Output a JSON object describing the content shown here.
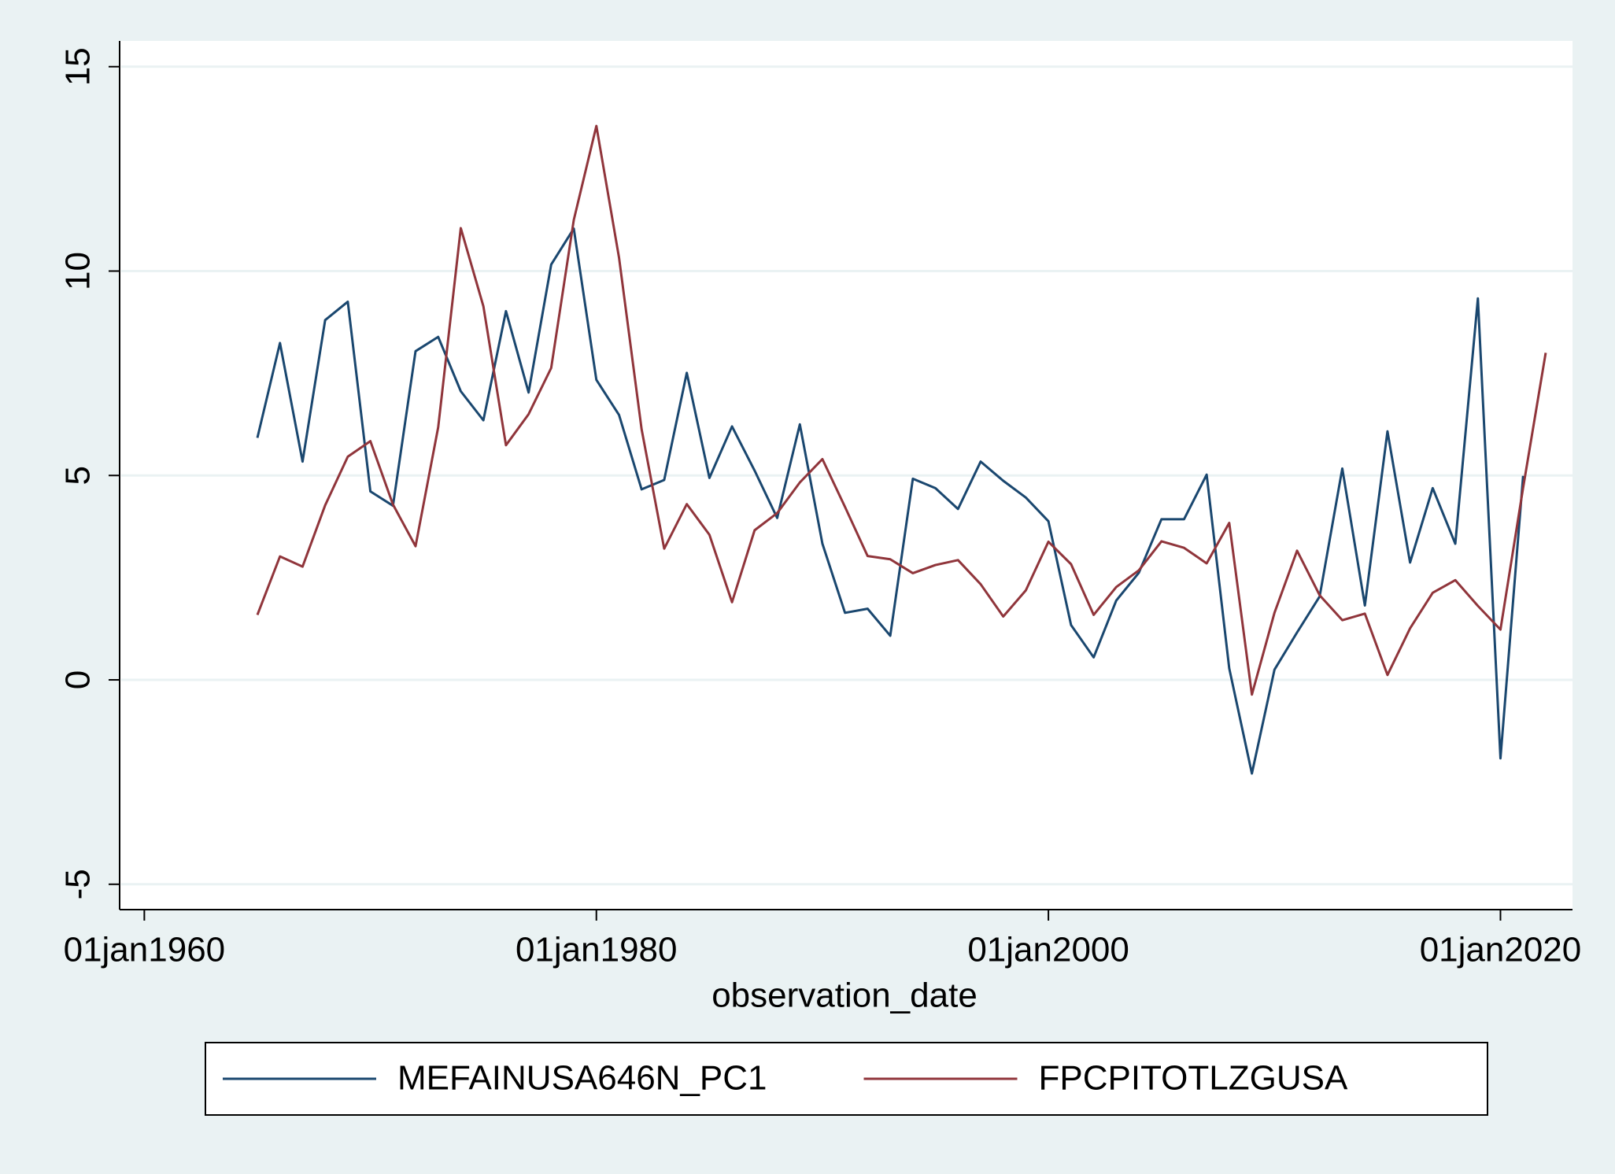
{
  "chart_data": {
    "type": "line",
    "x_label": "observation_date",
    "x": [
      "1965-01-01",
      "1966-01-01",
      "1967-01-01",
      "1968-01-01",
      "1969-01-01",
      "1970-01-01",
      "1971-01-01",
      "1972-01-01",
      "1973-01-01",
      "1974-01-01",
      "1975-01-01",
      "1976-01-01",
      "1977-01-01",
      "1978-01-01",
      "1979-01-01",
      "1980-01-01",
      "1981-01-01",
      "1982-01-01",
      "1983-01-01",
      "1984-01-01",
      "1985-01-01",
      "1986-01-01",
      "1987-01-01",
      "1988-01-01",
      "1989-01-01",
      "1990-01-01",
      "1991-01-01",
      "1992-01-01",
      "1993-01-01",
      "1994-01-01",
      "1995-01-01",
      "1996-01-01",
      "1997-01-01",
      "1998-01-01",
      "1999-01-01",
      "2000-01-01",
      "2001-01-01",
      "2002-01-01",
      "2003-01-01",
      "2004-01-01",
      "2005-01-01",
      "2006-01-01",
      "2007-01-01",
      "2008-01-01",
      "2009-01-01",
      "2010-01-01",
      "2011-01-01",
      "2012-01-01",
      "2013-01-01",
      "2014-01-01",
      "2015-01-01",
      "2016-01-01",
      "2017-01-01",
      "2018-01-01",
      "2019-01-01",
      "2020-01-01",
      "2021-01-01",
      "2022-01-01"
    ],
    "series": [
      {
        "name": "MEFAINUSA646N_PC1",
        "color": "#1a476f",
        "values": [
          5.92,
          8.24,
          5.34,
          8.8,
          9.25,
          4.61,
          4.26,
          8.04,
          8.39,
          7.06,
          6.35,
          9.02,
          7.03,
          10.16,
          11.04,
          7.34,
          6.48,
          4.66,
          4.89,
          7.51,
          4.94,
          6.2,
          5.12,
          3.96,
          6.25,
          3.33,
          1.64,
          1.74,
          1.08,
          4.92,
          4.69,
          4.18,
          5.34,
          4.87,
          4.46,
          3.88,
          1.34,
          0.55,
          1.94,
          2.62,
          3.93,
          3.93,
          5.02,
          0.28,
          -2.29,
          0.25,
          1.16,
          2.04,
          5.17,
          1.82,
          6.08,
          2.87,
          4.69,
          3.33,
          9.33,
          -1.92,
          4.99,
          null
        ]
      },
      {
        "name": "FPCPITOTLZGUSA",
        "color": "#90353b",
        "values": [
          1.59,
          3.02,
          2.77,
          4.27,
          5.46,
          5.84,
          4.29,
          3.27,
          6.18,
          11.05,
          9.14,
          5.74,
          6.5,
          7.63,
          11.25,
          13.55,
          10.33,
          6.13,
          3.21,
          4.3,
          3.55,
          1.9,
          3.66,
          4.08,
          4.83,
          5.4,
          4.23,
          3.03,
          2.95,
          2.61,
          2.81,
          2.93,
          2.34,
          1.55,
          2.19,
          3.38,
          2.83,
          1.59,
          2.27,
          2.68,
          3.39,
          3.23,
          2.85,
          3.84,
          -0.36,
          1.64,
          3.16,
          2.07,
          1.46,
          1.62,
          0.12,
          1.26,
          2.13,
          2.44,
          1.81,
          1.23,
          4.7,
          8.0
        ]
      }
    ],
    "xlim": [
      "1958-11-28",
      "2023-03-10"
    ],
    "xticks": [
      {
        "value": "1960-01-01",
        "label": "01jan1960"
      },
      {
        "value": "1980-01-01",
        "label": "01jan1980"
      },
      {
        "value": "2000-01-01",
        "label": "01jan2000"
      },
      {
        "value": "2020-01-01",
        "label": "01jan2020"
      }
    ],
    "ylim": [
      -5.62,
      15.63
    ],
    "yticks": [
      -5,
      0,
      5,
      10,
      15
    ],
    "grid": true,
    "legend": "bottom"
  }
}
